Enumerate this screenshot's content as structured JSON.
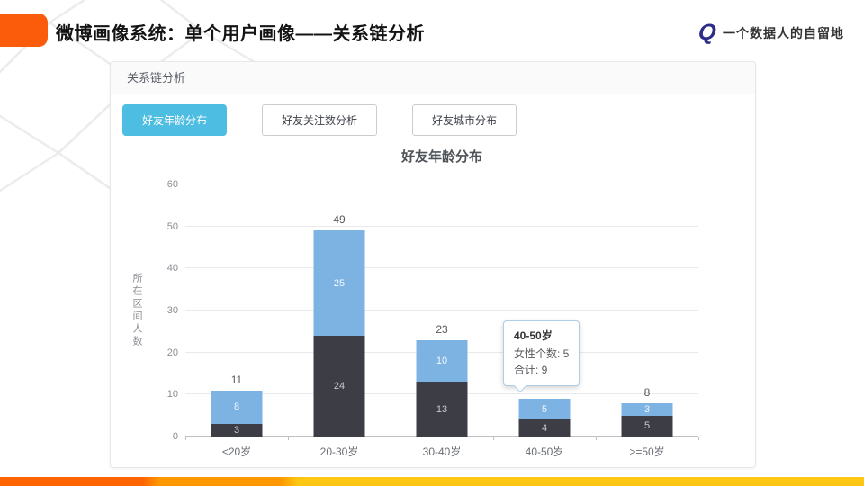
{
  "slide": {
    "title": "微博画像系统：单个用户画像——关系链分析"
  },
  "brand": {
    "glyph": "Q",
    "name": "一个数据人的自留地"
  },
  "panel": {
    "header": "关系链分析",
    "tabs": [
      {
        "name": "friend-age-distribution",
        "label": "好友年龄分布",
        "active": true
      },
      {
        "name": "friend-following-analysis",
        "label": "好友关注数分析",
        "active": false
      },
      {
        "name": "friend-city-distribution",
        "label": "好友城市分布",
        "active": false
      }
    ]
  },
  "chart_data": {
    "type": "bar",
    "stacked": true,
    "title": "好友年龄分布",
    "xlabel": "",
    "ylabel": "所在区间人数",
    "categories": [
      "<20岁",
      "20-30岁",
      "30-40岁",
      "40-50岁",
      ">=50岁"
    ],
    "series": [
      {
        "name": "bottom-dark-segment",
        "color": "#3d3e45",
        "label_color": "#c9c9cd",
        "values": [
          3,
          24,
          13,
          4,
          5
        ]
      },
      {
        "name": "女性个数",
        "color": "#7cb3e3",
        "label_color": "#f2f7fc",
        "values": [
          8,
          25,
          10,
          5,
          3
        ]
      }
    ],
    "totals": [
      11,
      49,
      23,
      9,
      8
    ],
    "total_labels": [
      "11",
      "49",
      "23",
      "",
      "8"
    ],
    "ylim": [
      0,
      60
    ],
    "yticks": [
      0,
      10,
      20,
      30,
      40,
      50,
      60
    ],
    "grid": true,
    "legend": "none"
  },
  "tooltip": {
    "category_index": 3,
    "title": "40-50岁",
    "lines": [
      "女性个数: 5",
      "合计: 9"
    ]
  },
  "colors": {
    "accent_orange": "#fb5c0b",
    "tab_active": "#4dbde2",
    "bar_dark": "#3d3e45",
    "bar_blue": "#7cb3e3",
    "tooltip_border": "#aecde6",
    "footer_gradient": [
      "#ff6400",
      "#ff9800",
      "#ffc613"
    ],
    "brand_blue": "#2d2c86"
  }
}
